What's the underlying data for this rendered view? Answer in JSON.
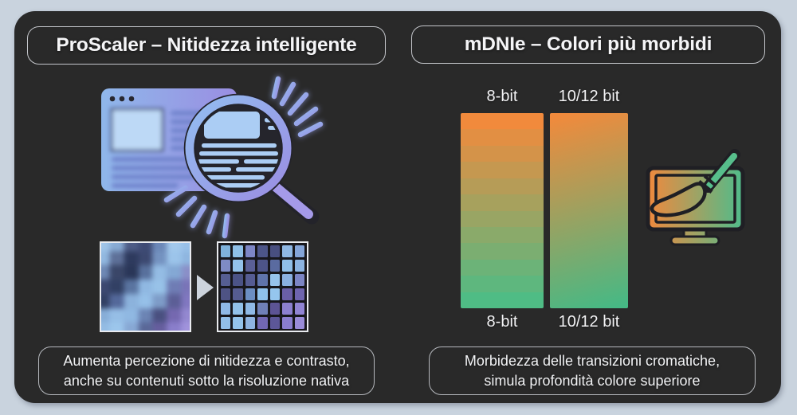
{
  "left_panel": {
    "title": "ProScaler – Nitidezza intelligente",
    "description": {
      "line1": "Aumenta percezione di nitidezza e contrasto,",
      "line2": "anche su contenuti sotto la risoluzione nativa"
    },
    "illustration": "browser-window-with-magnifier-icon",
    "pixel_grids": {
      "blurry": {
        "cols": 7,
        "rows": 7,
        "colors": [
          [
            "#9fc4e8",
            "#88abd4",
            "#4e5c86",
            "#3e4a74",
            "#6c88b8",
            "#a2c8ec",
            "#98c0e8"
          ],
          [
            "#92b8e0",
            "#5e7098",
            "#2e3a5e",
            "#3c4870",
            "#7492c0",
            "#9cc4ea",
            "#8fb6e0"
          ],
          [
            "#6e88b4",
            "#3a4668",
            "#2a3658",
            "#58709c",
            "#94bce4",
            "#84a8d4",
            "#8a8fc8"
          ],
          [
            "#3c4870",
            "#324064",
            "#5a74a0",
            "#90b8e2",
            "#98c2e8",
            "#6f7cb4",
            "#7a74b8"
          ],
          [
            "#324064",
            "#54689a",
            "#8cb2dc",
            "#96c0e8",
            "#7e9cc8",
            "#5c5e96",
            "#8177c0"
          ],
          [
            "#88aed8",
            "#96bee6",
            "#90b8e2",
            "#6c84b4",
            "#4a5080",
            "#7568b0",
            "#9488d0"
          ],
          [
            "#94bce4",
            "#9cc6ec",
            "#88a8d4",
            "#5a6898",
            "#665e9e",
            "#8a7ecb",
            "#a193dc"
          ]
        ]
      },
      "sharp": {
        "cols": 7,
        "rows": 6,
        "colors": [
          [
            "#7fb2dc",
            "#8fc0e8",
            "#7d86c6",
            "#4c5588",
            "#484f80",
            "#8fb8e4",
            "#84a5d9"
          ],
          [
            "#7e8bc4",
            "#93c2ea",
            "#5a5f96",
            "#4d5488",
            "#5a6ba0",
            "#90bfe9",
            "#8cb4e2"
          ],
          [
            "#565e92",
            "#4b5386",
            "#555c92",
            "#5f74ab",
            "#96c4ec",
            "#8ab0e0",
            "#7c85c4"
          ],
          [
            "#4e5384",
            "#555c90",
            "#6b8ec2",
            "#8fc2ec",
            "#95c6ee",
            "#6a5fa6",
            "#6e64ae"
          ],
          [
            "#8fb9e6",
            "#92c1ea",
            "#8fb9e6",
            "#6f80b8",
            "#5c5494",
            "#8b7fd0",
            "#9184d4"
          ],
          [
            "#92bfe9",
            "#94c3ec",
            "#8fb4e2",
            "#7268b4",
            "#5c5798",
            "#8a7ecf",
            "#9a8cd9"
          ]
        ]
      },
      "arrow_icon": "arrow-right-triangle"
    }
  },
  "right_panel": {
    "title": "mDNIe – Colori più morbidi",
    "description": {
      "line1": "Morbidezza delle transizioni cromatiche,",
      "line2": "simula profondità colore superiore"
    },
    "illustration": "monitor-with-paintbrush-icon",
    "bars": {
      "stepped": {
        "label_top": "8-bit",
        "label_bottom": "8-bit",
        "steps": 12,
        "color_top": "#F18A3C",
        "color_bottom": "#4FBC85"
      },
      "smooth": {
        "label_top": "10/12 bit",
        "label_bottom": "10/12 bit",
        "color_top": "#F18A3C",
        "color_bottom": "#46B985"
      }
    }
  },
  "colors": {
    "page_background": "#c9d3de",
    "panel_background": "#292929",
    "text": "#f5f5f7",
    "accent_blue": "#8fb7ea",
    "accent_purple": "#9a8ee2",
    "accent_orange": "#F18A3C",
    "accent_green": "#46B985"
  }
}
